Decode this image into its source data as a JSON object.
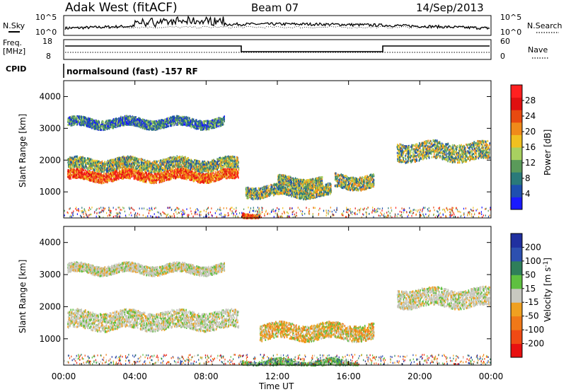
{
  "header": {
    "station": "Adak West (fitACF)",
    "beam": "Beam 07",
    "date": "14/Sep/2013"
  },
  "top_panels": {
    "nsky_label": "N.Sky",
    "nsky_ticks": [
      "10^5",
      "10^0"
    ],
    "nsearch_label": "N.Search",
    "nsearch_ticks": [
      "10^5",
      "10^0"
    ],
    "freq_label_1": "Freq.",
    "freq_label_2": "[MHz]",
    "freq_ticks": [
      "18",
      "8"
    ],
    "nave_label": "Nave",
    "nave_ticks": [
      "60",
      "0"
    ],
    "cpid_label": "CPID",
    "cpid_text": "normalsound (fast) -157 RF"
  },
  "axes": {
    "ylabel": "Slant Range [km]",
    "xlabel": "Time UT",
    "xticks": [
      "00:00",
      "04:00",
      "08:00",
      "12:00",
      "16:00",
      "20:00",
      "00:00"
    ],
    "yticks": [
      "1000",
      "2000",
      "3000",
      "4000"
    ]
  },
  "colorbars": {
    "power": {
      "label": "Power [dB]",
      "ticks": [
        "4",
        "8",
        "12",
        "16",
        "20",
        "24",
        "28"
      ],
      "colors": [
        "#1a1aff",
        "#1e4fb0",
        "#2a7a7a",
        "#5a9a5a",
        "#a8d060",
        "#f0c020",
        "#f08a1a",
        "#e84a10",
        "#e01010",
        "#ff2020"
      ]
    },
    "velocity": {
      "label": "Velocity [m s^-1]",
      "ticks": [
        "200",
        "100",
        "50",
        "15",
        "-15",
        "-50",
        "-100",
        "-200"
      ],
      "colors": [
        "#2030a0",
        "#2d50b0",
        "#2f7f5a",
        "#5fc040",
        "#c8c8c0",
        "#f0a020",
        "#f07818",
        "#f04a14",
        "#e81010"
      ]
    }
  },
  "chart_data": [
    {
      "type": "heatmap",
      "title": "Power",
      "x_range_hours": [
        0,
        24
      ],
      "ylim": [
        180,
        4500
      ],
      "colorbar_label": "Power [dB]",
      "scatter_bands": [
        {
          "t_start": 0.2,
          "t_end": 9.8,
          "range_center": 1540,
          "range_width": 220,
          "level": "high"
        },
        {
          "t_start": 0.2,
          "t_end": 9.8,
          "range_center": 1900,
          "range_width": 250,
          "level": "medium"
        },
        {
          "t_start": 0.2,
          "t_end": 9.0,
          "range_center": 3200,
          "range_width": 200,
          "level": "low"
        },
        {
          "t_start": 10.2,
          "t_end": 15.0,
          "range_center": 1050,
          "range_width": 250,
          "level": "medium"
        },
        {
          "t_start": 12.0,
          "t_end": 14.5,
          "range_center": 1350,
          "range_width": 200,
          "level": "medium"
        },
        {
          "t_start": 15.2,
          "t_end": 17.4,
          "range_center": 1350,
          "range_width": 300,
          "level": "medium"
        },
        {
          "t_start": 18.7,
          "t_end": 23.9,
          "range_center": 2300,
          "range_width": 400,
          "level": "medium"
        },
        {
          "t_start": 10.0,
          "t_end": 11.0,
          "range_center": 300,
          "range_width": 120,
          "level": "high"
        }
      ]
    },
    {
      "type": "heatmap",
      "title": "Velocity",
      "x_range_hours": [
        0,
        24
      ],
      "ylim": [
        180,
        4500
      ],
      "colorbar_label": "Velocity [m s^-1]",
      "scatter_bands": [
        {
          "t_start": 0.2,
          "t_end": 9.8,
          "range_center": 1600,
          "range_width": 400,
          "level": "ground"
        },
        {
          "t_start": 0.2,
          "t_end": 9.0,
          "range_center": 3200,
          "range_width": 200,
          "level": "ground"
        },
        {
          "t_start": 11.0,
          "t_end": 17.4,
          "range_center": 1250,
          "range_width": 350,
          "level": "negative"
        },
        {
          "t_start": 18.7,
          "t_end": 23.9,
          "range_center": 2300,
          "range_width": 400,
          "level": "ground"
        },
        {
          "t_start": 10.0,
          "t_end": 16.5,
          "range_center": 250,
          "range_width": 150,
          "level": "positive"
        }
      ]
    }
  ]
}
